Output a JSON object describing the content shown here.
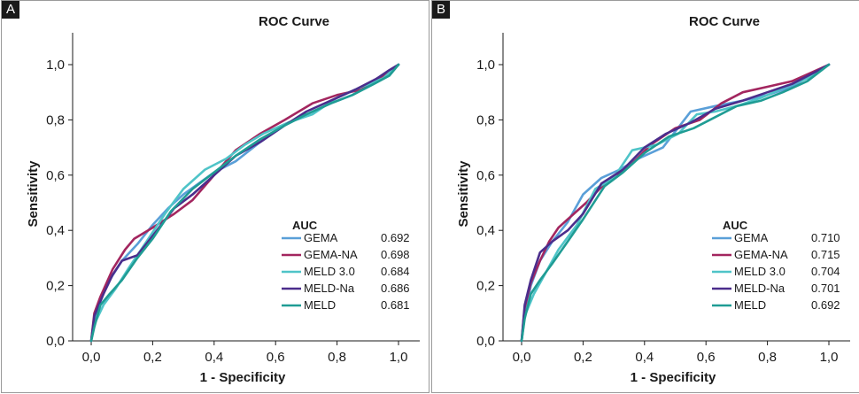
{
  "chart_data": [
    {
      "panel": "A",
      "type": "line",
      "title": "ROC Curve",
      "xlabel": "1 - Specificity",
      "ylabel": "Sensitivity",
      "xlim": [
        0.0,
        1.0
      ],
      "ylim": [
        0.0,
        1.0
      ],
      "xticks": [
        "0,0",
        "0,2",
        "0,4",
        "0,6",
        "0,8",
        "1,0"
      ],
      "yticks": [
        "0,0",
        "0,2",
        "0,4",
        "0,6",
        "0,8",
        "1,0"
      ],
      "grid": false,
      "legend": {
        "title": "AUC",
        "placement": "lower-right"
      },
      "series": [
        {
          "name": "GEMA",
          "auc": "0.692",
          "color": "#5a9fd8",
          "x": [
            0.0,
            0.01,
            0.03,
            0.06,
            0.1,
            0.15,
            0.2,
            0.25,
            0.3,
            0.35,
            0.4,
            0.47,
            0.55,
            0.63,
            0.7,
            0.78,
            0.85,
            0.9,
            0.95,
            1.0
          ],
          "y": [
            0.0,
            0.07,
            0.15,
            0.22,
            0.29,
            0.35,
            0.42,
            0.48,
            0.53,
            0.57,
            0.61,
            0.65,
            0.72,
            0.78,
            0.82,
            0.86,
            0.89,
            0.92,
            0.96,
            1.0
          ]
        },
        {
          "name": "GEMA-NA",
          "auc": "0.698",
          "color": "#a3265f",
          "x": [
            0.0,
            0.01,
            0.03,
            0.07,
            0.11,
            0.14,
            0.2,
            0.27,
            0.33,
            0.4,
            0.47,
            0.55,
            0.63,
            0.72,
            0.8,
            0.88,
            0.93,
            0.97,
            1.0
          ],
          "y": [
            0.0,
            0.1,
            0.16,
            0.26,
            0.33,
            0.37,
            0.41,
            0.46,
            0.51,
            0.6,
            0.69,
            0.75,
            0.8,
            0.86,
            0.89,
            0.91,
            0.95,
            0.97,
            1.0
          ]
        },
        {
          "name": "MELD 3.0",
          "auc": "0.684",
          "color": "#4fc4c8",
          "x": [
            0.0,
            0.01,
            0.04,
            0.08,
            0.12,
            0.18,
            0.24,
            0.3,
            0.37,
            0.44,
            0.5,
            0.56,
            0.64,
            0.72,
            0.8,
            0.88,
            0.95,
            1.0
          ],
          "y": [
            0.0,
            0.06,
            0.13,
            0.19,
            0.26,
            0.36,
            0.46,
            0.55,
            0.62,
            0.66,
            0.71,
            0.75,
            0.79,
            0.82,
            0.88,
            0.92,
            0.95,
            1.0
          ]
        },
        {
          "name": "MELD-Na",
          "auc": "0.686",
          "color": "#4b2d8c",
          "x": [
            0.0,
            0.01,
            0.04,
            0.07,
            0.1,
            0.15,
            0.2,
            0.27,
            0.33,
            0.4,
            0.47,
            0.55,
            0.63,
            0.7,
            0.78,
            0.86,
            0.93,
            0.97,
            1.0
          ],
          "y": [
            0.0,
            0.09,
            0.17,
            0.24,
            0.29,
            0.31,
            0.38,
            0.48,
            0.53,
            0.6,
            0.67,
            0.72,
            0.78,
            0.83,
            0.87,
            0.91,
            0.95,
            0.98,
            1.0
          ]
        },
        {
          "name": "MELD",
          "auc": "0.681",
          "color": "#1f9c94",
          "x": [
            0.0,
            0.01,
            0.03,
            0.06,
            0.1,
            0.15,
            0.2,
            0.26,
            0.33,
            0.4,
            0.47,
            0.55,
            0.63,
            0.7,
            0.78,
            0.85,
            0.92,
            0.97,
            1.0
          ],
          "y": [
            0.0,
            0.05,
            0.13,
            0.17,
            0.22,
            0.3,
            0.37,
            0.47,
            0.55,
            0.61,
            0.67,
            0.73,
            0.78,
            0.82,
            0.86,
            0.89,
            0.93,
            0.96,
            1.0
          ]
        }
      ]
    },
    {
      "panel": "B",
      "type": "line",
      "title": "ROC Curve",
      "xlabel": "1 - Specificity",
      "ylabel": "Sensitivity",
      "xlim": [
        0.0,
        1.0
      ],
      "ylim": [
        0.0,
        1.0
      ],
      "xticks": [
        "0,0",
        "0,2",
        "0,4",
        "0,6",
        "0,8",
        "1,0"
      ],
      "yticks": [
        "0,0",
        "0,2",
        "0,4",
        "0,6",
        "0,8",
        "1,0"
      ],
      "grid": false,
      "legend": {
        "title": "AUC",
        "placement": "lower-right"
      },
      "series": [
        {
          "name": "GEMA",
          "auc": "0.710",
          "color": "#5a9fd8",
          "x": [
            0.0,
            0.01,
            0.03,
            0.06,
            0.1,
            0.15,
            0.2,
            0.26,
            0.32,
            0.38,
            0.46,
            0.55,
            0.63,
            0.72,
            0.8,
            0.88,
            0.94,
            1.0
          ],
          "y": [
            0.0,
            0.09,
            0.2,
            0.29,
            0.36,
            0.43,
            0.53,
            0.59,
            0.62,
            0.66,
            0.7,
            0.83,
            0.85,
            0.87,
            0.89,
            0.92,
            0.96,
            1.0
          ]
        },
        {
          "name": "GEMA-NA",
          "auc": "0.715",
          "color": "#a3265f",
          "x": [
            0.0,
            0.01,
            0.03,
            0.06,
            0.09,
            0.12,
            0.16,
            0.21,
            0.28,
            0.35,
            0.42,
            0.5,
            0.58,
            0.65,
            0.72,
            0.8,
            0.88,
            0.94,
            1.0
          ],
          "y": [
            0.0,
            0.12,
            0.21,
            0.29,
            0.36,
            0.41,
            0.45,
            0.5,
            0.58,
            0.63,
            0.71,
            0.77,
            0.8,
            0.86,
            0.9,
            0.92,
            0.94,
            0.97,
            1.0
          ]
        },
        {
          "name": "MELD 3.0",
          "auc": "0.704",
          "color": "#4fc4c8",
          "x": [
            0.0,
            0.01,
            0.04,
            0.08,
            0.12,
            0.18,
            0.24,
            0.3,
            0.36,
            0.44,
            0.51,
            0.57,
            0.63,
            0.7,
            0.78,
            0.86,
            0.93,
            1.0
          ],
          "y": [
            0.0,
            0.09,
            0.17,
            0.25,
            0.33,
            0.42,
            0.55,
            0.59,
            0.69,
            0.71,
            0.75,
            0.82,
            0.83,
            0.85,
            0.88,
            0.92,
            0.95,
            1.0
          ]
        },
        {
          "name": "MELD-Na",
          "auc": "0.701",
          "color": "#4b2d8c",
          "x": [
            0.0,
            0.01,
            0.03,
            0.06,
            0.1,
            0.15,
            0.2,
            0.26,
            0.33,
            0.4,
            0.47,
            0.55,
            0.63,
            0.72,
            0.8,
            0.88,
            0.95,
            1.0
          ],
          "y": [
            0.0,
            0.13,
            0.22,
            0.32,
            0.36,
            0.4,
            0.46,
            0.57,
            0.62,
            0.7,
            0.75,
            0.79,
            0.84,
            0.87,
            0.9,
            0.93,
            0.97,
            1.0
          ]
        },
        {
          "name": "MELD",
          "auc": "0.692",
          "color": "#1f9c94",
          "x": [
            0.0,
            0.01,
            0.03,
            0.06,
            0.1,
            0.15,
            0.2,
            0.27,
            0.33,
            0.4,
            0.48,
            0.56,
            0.63,
            0.7,
            0.78,
            0.85,
            0.93,
            1.0
          ],
          "y": [
            0.0,
            0.08,
            0.17,
            0.22,
            0.28,
            0.36,
            0.44,
            0.56,
            0.61,
            0.68,
            0.74,
            0.77,
            0.81,
            0.85,
            0.87,
            0.9,
            0.94,
            1.0
          ]
        }
      ]
    }
  ]
}
